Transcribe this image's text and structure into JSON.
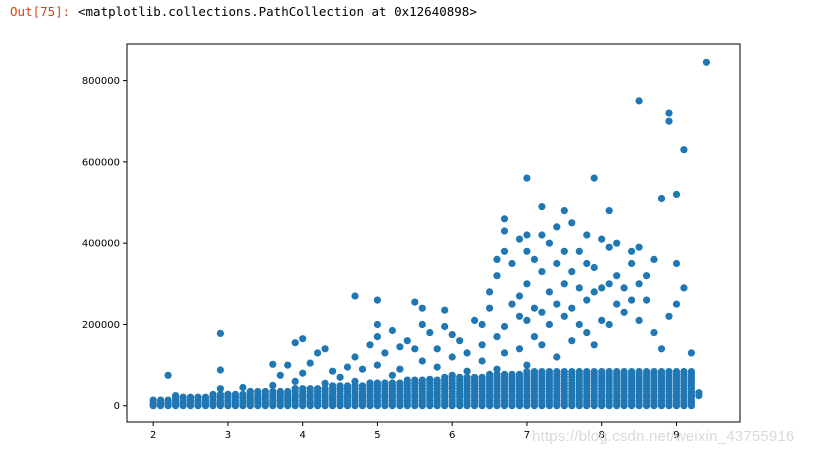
{
  "output": {
    "prompt": "Out[75]:",
    "text": "<matplotlib.collections.PathCollection at 0x12640898>"
  },
  "watermark": "https://blog.csdn.net/weixin_43755916",
  "colors": {
    "marker": "#1f77b4",
    "axes": "#000000"
  },
  "chart_data": {
    "type": "scatter",
    "title": "",
    "xlabel": "",
    "ylabel": "",
    "xlim": [
      1.65,
      9.85
    ],
    "ylim": [
      -40000,
      890000
    ],
    "xticks": [
      2,
      3,
      4,
      5,
      6,
      7,
      8,
      9
    ],
    "yticks": [
      0,
      200000,
      400000,
      600000,
      800000
    ],
    "xtick_labels": [
      "2",
      "3",
      "4",
      "5",
      "6",
      "7",
      "8",
      "9"
    ],
    "ytick_labels": [
      "0",
      "200000",
      "400000",
      "600000",
      "800000"
    ],
    "grid": false,
    "points": [
      [
        2.0,
        2000
      ],
      [
        2.1,
        5000
      ],
      [
        2.2,
        3000
      ],
      [
        2.2,
        75000
      ],
      [
        2.3,
        8000
      ],
      [
        2.3,
        25000
      ],
      [
        2.4,
        4000
      ],
      [
        2.5,
        12000
      ],
      [
        2.6,
        6000
      ],
      [
        2.7,
        3000
      ],
      [
        2.8,
        9000
      ],
      [
        2.9,
        5000
      ],
      [
        2.9,
        42000
      ],
      [
        2.9,
        88000
      ],
      [
        2.9,
        178000
      ],
      [
        3.0,
        14000
      ],
      [
        3.0,
        28000
      ],
      [
        3.1,
        7000
      ],
      [
        3.2,
        20000
      ],
      [
        3.2,
        45000
      ],
      [
        3.3,
        10000
      ],
      [
        3.3,
        35000
      ],
      [
        3.4,
        18000
      ],
      [
        3.5,
        5000
      ],
      [
        3.6,
        12000
      ],
      [
        3.6,
        50000
      ],
      [
        3.6,
        102000
      ],
      [
        3.7,
        30000
      ],
      [
        3.7,
        75000
      ],
      [
        3.8,
        16000
      ],
      [
        3.8,
        100000
      ],
      [
        3.9,
        42000
      ],
      [
        3.9,
        60000
      ],
      [
        3.9,
        155000
      ],
      [
        4.0,
        24000
      ],
      [
        4.0,
        165000
      ],
      [
        4.0,
        80000
      ],
      [
        4.1,
        105000
      ],
      [
        4.1,
        8000
      ],
      [
        4.2,
        35000
      ],
      [
        4.2,
        130000
      ],
      [
        4.3,
        140000
      ],
      [
        4.3,
        55000
      ],
      [
        4.4,
        15000
      ],
      [
        4.4,
        85000
      ],
      [
        4.5,
        40000
      ],
      [
        4.5,
        70000
      ],
      [
        4.6,
        95000
      ],
      [
        4.6,
        20000
      ],
      [
        4.7,
        270000
      ],
      [
        4.7,
        120000
      ],
      [
        4.7,
        60000
      ],
      [
        4.8,
        30000
      ],
      [
        4.8,
        90000
      ],
      [
        4.9,
        150000
      ],
      [
        4.9,
        10000
      ],
      [
        5.0,
        260000
      ],
      [
        5.0,
        170000
      ],
      [
        5.0,
        100000
      ],
      [
        5.0,
        50000
      ],
      [
        5.0,
        200000
      ],
      [
        5.1,
        130000
      ],
      [
        5.1,
        25000
      ],
      [
        5.2,
        75000
      ],
      [
        5.2,
        185000
      ],
      [
        5.3,
        145000
      ],
      [
        5.3,
        90000
      ],
      [
        5.4,
        20000
      ],
      [
        5.4,
        160000
      ],
      [
        5.5,
        55000
      ],
      [
        5.5,
        140000
      ],
      [
        5.5,
        255000
      ],
      [
        5.6,
        240000
      ],
      [
        5.6,
        110000
      ],
      [
        5.6,
        200000
      ],
      [
        5.7,
        30000
      ],
      [
        5.7,
        65000
      ],
      [
        5.7,
        180000
      ],
      [
        5.8,
        95000
      ],
      [
        5.8,
        140000
      ],
      [
        5.9,
        45000
      ],
      [
        5.9,
        235000
      ],
      [
        5.9,
        195000
      ],
      [
        6.0,
        120000
      ],
      [
        6.0,
        75000
      ],
      [
        6.0,
        175000
      ],
      [
        6.1,
        160000
      ],
      [
        6.1,
        30000
      ],
      [
        6.2,
        130000
      ],
      [
        6.2,
        85000
      ],
      [
        6.3,
        210000
      ],
      [
        6.3,
        55000
      ],
      [
        6.4,
        200000
      ],
      [
        6.4,
        150000
      ],
      [
        6.4,
        110000
      ],
      [
        6.5,
        280000
      ],
      [
        6.5,
        240000
      ],
      [
        6.5,
        20000
      ],
      [
        6.6,
        360000
      ],
      [
        6.6,
        320000
      ],
      [
        6.6,
        170000
      ],
      [
        6.6,
        90000
      ],
      [
        6.7,
        460000
      ],
      [
        6.7,
        430000
      ],
      [
        6.7,
        380000
      ],
      [
        6.7,
        195000
      ],
      [
        6.7,
        130000
      ],
      [
        6.8,
        350000
      ],
      [
        6.8,
        250000
      ],
      [
        6.8,
        60000
      ],
      [
        6.9,
        410000
      ],
      [
        6.9,
        270000
      ],
      [
        6.9,
        220000
      ],
      [
        6.9,
        140000
      ],
      [
        7.0,
        560000
      ],
      [
        7.0,
        420000
      ],
      [
        7.0,
        380000
      ],
      [
        7.0,
        300000
      ],
      [
        7.0,
        210000
      ],
      [
        7.0,
        100000
      ],
      [
        7.1,
        360000
      ],
      [
        7.1,
        240000
      ],
      [
        7.1,
        170000
      ],
      [
        7.1,
        40000
      ],
      [
        7.2,
        490000
      ],
      [
        7.2,
        420000
      ],
      [
        7.2,
        330000
      ],
      [
        7.2,
        230000
      ],
      [
        7.2,
        150000
      ],
      [
        7.3,
        400000
      ],
      [
        7.3,
        280000
      ],
      [
        7.3,
        200000
      ],
      [
        7.4,
        440000
      ],
      [
        7.4,
        350000
      ],
      [
        7.4,
        250000
      ],
      [
        7.4,
        120000
      ],
      [
        7.5,
        480000
      ],
      [
        7.5,
        380000
      ],
      [
        7.5,
        300000
      ],
      [
        7.5,
        220000
      ],
      [
        7.6,
        450000
      ],
      [
        7.6,
        330000
      ],
      [
        7.6,
        240000
      ],
      [
        7.6,
        160000
      ],
      [
        7.7,
        380000
      ],
      [
        7.7,
        290000
      ],
      [
        7.7,
        200000
      ],
      [
        7.8,
        420000
      ],
      [
        7.8,
        350000
      ],
      [
        7.8,
        260000
      ],
      [
        7.8,
        180000
      ],
      [
        7.9,
        560000
      ],
      [
        7.9,
        340000
      ],
      [
        7.9,
        280000
      ],
      [
        7.9,
        150000
      ],
      [
        8.0,
        410000
      ],
      [
        8.0,
        290000
      ],
      [
        8.0,
        210000
      ],
      [
        8.1,
        480000
      ],
      [
        8.1,
        390000
      ],
      [
        8.1,
        300000
      ],
      [
        8.1,
        200000
      ],
      [
        8.2,
        400000
      ],
      [
        8.2,
        320000
      ],
      [
        8.2,
        250000
      ],
      [
        8.3,
        290000
      ],
      [
        8.3,
        230000
      ],
      [
        8.4,
        380000
      ],
      [
        8.4,
        350000
      ],
      [
        8.4,
        260000
      ],
      [
        8.5,
        750000
      ],
      [
        8.5,
        390000
      ],
      [
        8.5,
        300000
      ],
      [
        8.5,
        210000
      ],
      [
        8.6,
        320000
      ],
      [
        8.6,
        260000
      ],
      [
        8.7,
        360000
      ],
      [
        8.7,
        180000
      ],
      [
        8.8,
        510000
      ],
      [
        8.8,
        140000
      ],
      [
        8.9,
        720000
      ],
      [
        8.9,
        700000
      ],
      [
        8.9,
        220000
      ],
      [
        9.0,
        520000
      ],
      [
        9.0,
        350000
      ],
      [
        9.0,
        250000
      ],
      [
        9.1,
        630000
      ],
      [
        9.1,
        290000
      ],
      [
        9.2,
        130000
      ],
      [
        9.3,
        25000
      ],
      [
        9.4,
        845000
      ],
      [
        8.7,
        80000
      ],
      [
        9.2,
        8000
      ],
      [
        9.3,
        32000
      ]
    ],
    "dense_band": {
      "x_range": [
        2.0,
        9.2
      ],
      "x_step": 0.1,
      "y_max_note": "stack of markers from 0 up to ~60000"
    }
  }
}
